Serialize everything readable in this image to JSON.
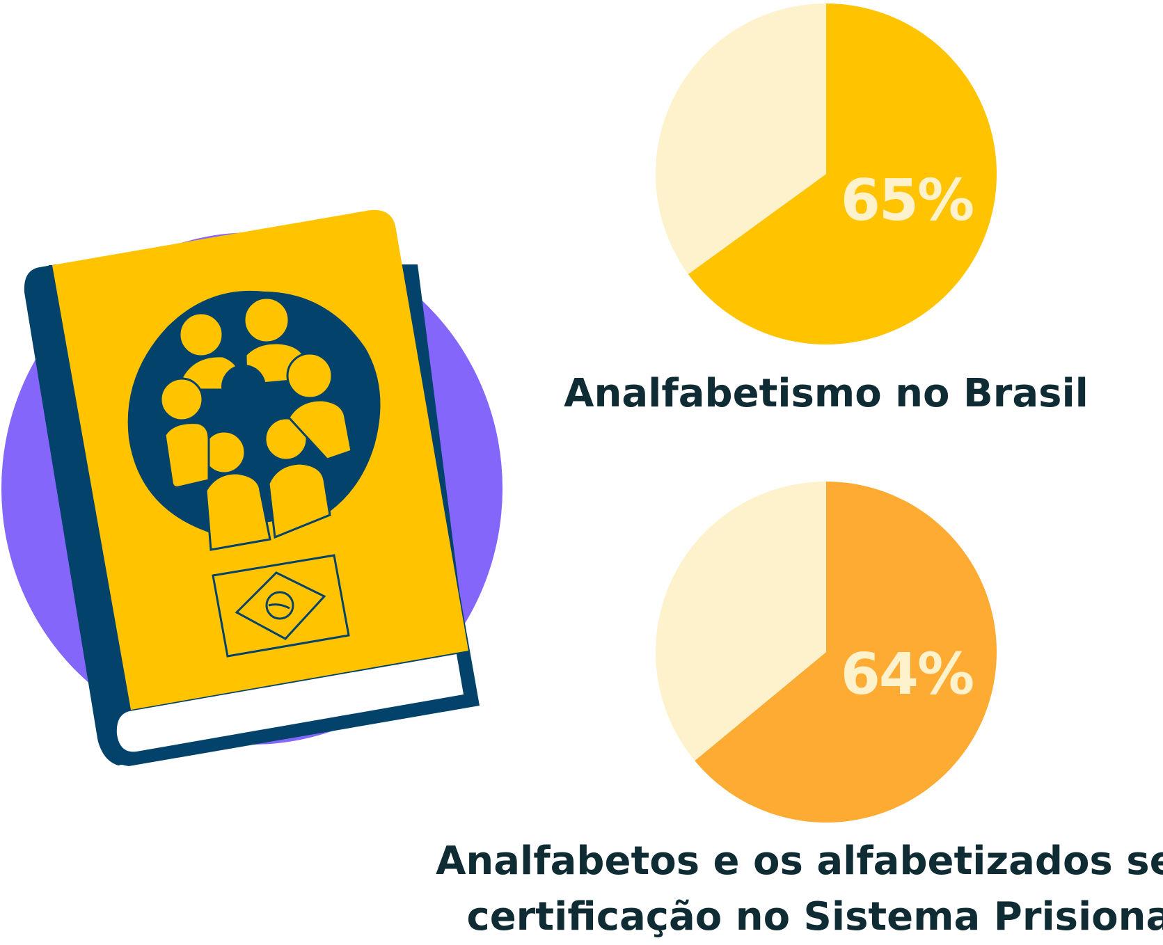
{
  "colors": {
    "purple": "#8566fb",
    "navy": "#03426b",
    "yellow": "#ffc300",
    "orange": "#feab34",
    "cream": "#fef2cd",
    "dark_text": "#0f2b33",
    "white": "#ffffff"
  },
  "illustration": {
    "icon": "book-icon",
    "cover_icons": [
      "people-group-icon",
      "brazil-flag-icon"
    ]
  },
  "chart_data": [
    {
      "type": "pie",
      "title": "Analfabetismo no Brasil",
      "value": 65,
      "label": "65%",
      "slices": [
        {
          "value": 65,
          "color": "#ffc300"
        },
        {
          "value": 35,
          "color": "#fef2cd"
        }
      ]
    },
    {
      "type": "pie",
      "title": "Analfabetos e os alfabetizados sem certificação no Sistema Prisional",
      "title_lines": [
        "Analfabetos e os alfabetizados sem",
        "certificação no Sistema Prisional"
      ],
      "value": 64,
      "label": "64%",
      "slices": [
        {
          "value": 64,
          "color": "#feab34"
        },
        {
          "value": 36,
          "color": "#fef2cd"
        }
      ]
    }
  ]
}
